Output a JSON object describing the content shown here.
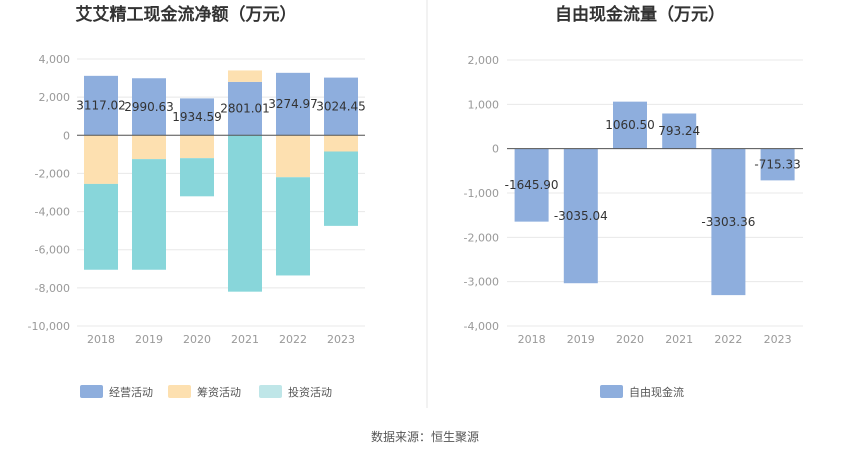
{
  "source_text": "数据来源：恒生聚源",
  "chart_data": [
    {
      "type": "bar",
      "stacked": true,
      "title": "艾艾精工现金流净额（万元）",
      "categories": [
        "2018",
        "2019",
        "2020",
        "2021",
        "2022",
        "2023"
      ],
      "ylim": [
        -10000,
        4000
      ],
      "yticks": [
        -10000,
        -8000,
        -6000,
        -4000,
        -2000,
        0,
        2000,
        4000
      ],
      "ytick_labels": [
        "-10,000",
        "-8,000",
        "-6,000",
        "-4,000",
        "-2,000",
        "0",
        "2,000",
        "4,000"
      ],
      "grid": true,
      "legend_position": "bottom",
      "series": [
        {
          "name": "经营活动",
          "color": "#8eaedd",
          "values": [
            3117.02,
            2990.63,
            1934.59,
            2801.01,
            3274.97,
            3024.45
          ],
          "labels": [
            "3117.02",
            "2990.63",
            "1934.59",
            "2801.01",
            "3274.97",
            "3024.45"
          ]
        },
        {
          "name": "筹资活动",
          "color": "#fde0b0",
          "values": [
            -2550,
            -1250,
            -1200,
            600,
            -2200,
            -850
          ]
        },
        {
          "name": "投资活动",
          "color": "#88d6da",
          "values": [
            -4500,
            -5800,
            -2000,
            -8200,
            -5150,
            -3900
          ]
        }
      ]
    },
    {
      "type": "bar",
      "title": "自由现金流量（万元）",
      "categories": [
        "2018",
        "2019",
        "2020",
        "2021",
        "2022",
        "2023"
      ],
      "ylim": [
        -4000,
        2000
      ],
      "yticks": [
        -4000,
        -3000,
        -2000,
        -1000,
        0,
        1000,
        2000
      ],
      "ytick_labels": [
        "-4,000",
        "-3,000",
        "-2,000",
        "-1,000",
        "0",
        "1,000",
        "2,000"
      ],
      "grid": true,
      "legend_position": "bottom",
      "series": [
        {
          "name": "自由现金流",
          "color": "#8eaedd",
          "values": [
            -1645.9,
            -3035.04,
            1060.5,
            793.24,
            -3303.36,
            -715.33
          ],
          "labels": [
            "-1645.90",
            "-3035.04",
            "1060.50",
            "793.24",
            "-3303.36",
            "-715.33"
          ]
        }
      ]
    }
  ]
}
